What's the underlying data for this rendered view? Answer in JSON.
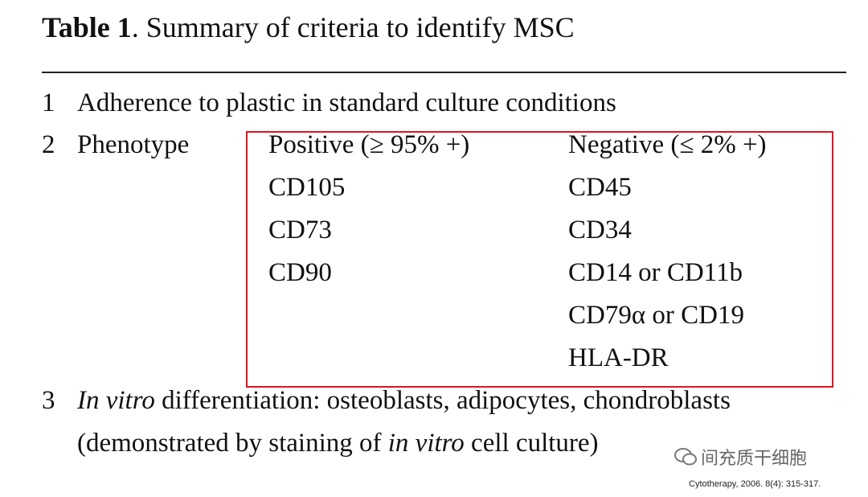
{
  "title": {
    "label": "Table 1",
    "text": ". Summary of criteria to identify MSC"
  },
  "rows": [
    {
      "number": "1",
      "text": "Adherence to plastic in standard culture conditions"
    },
    {
      "number": "2",
      "text": "Phenotype",
      "positive": {
        "header": "Positive (≥ 95% +)",
        "markers": [
          "CD105",
          "CD73",
          "CD90"
        ]
      },
      "negative": {
        "header": "Negative (≤ 2% +)",
        "markers": [
          "CD45",
          "CD34",
          "CD14 or CD11b",
          "CD79α or CD19",
          "HLA-DR"
        ]
      }
    },
    {
      "number": "3",
      "lines": [
        [
          {
            "text": "In vitro",
            "italic": true
          },
          {
            "text": " differentiation: osteoblasts, adipocytes, chondroblasts",
            "italic": false
          }
        ],
        [
          {
            "text": "(demonstrated by staining of ",
            "italic": false
          },
          {
            "text": "in vitro",
            "italic": true
          },
          {
            "text": " cell culture)",
            "italic": false
          }
        ]
      ]
    }
  ],
  "watermark": "间充质干细胞",
  "citation": "Cytotherapy, 2006. 8(4): 315-317."
}
